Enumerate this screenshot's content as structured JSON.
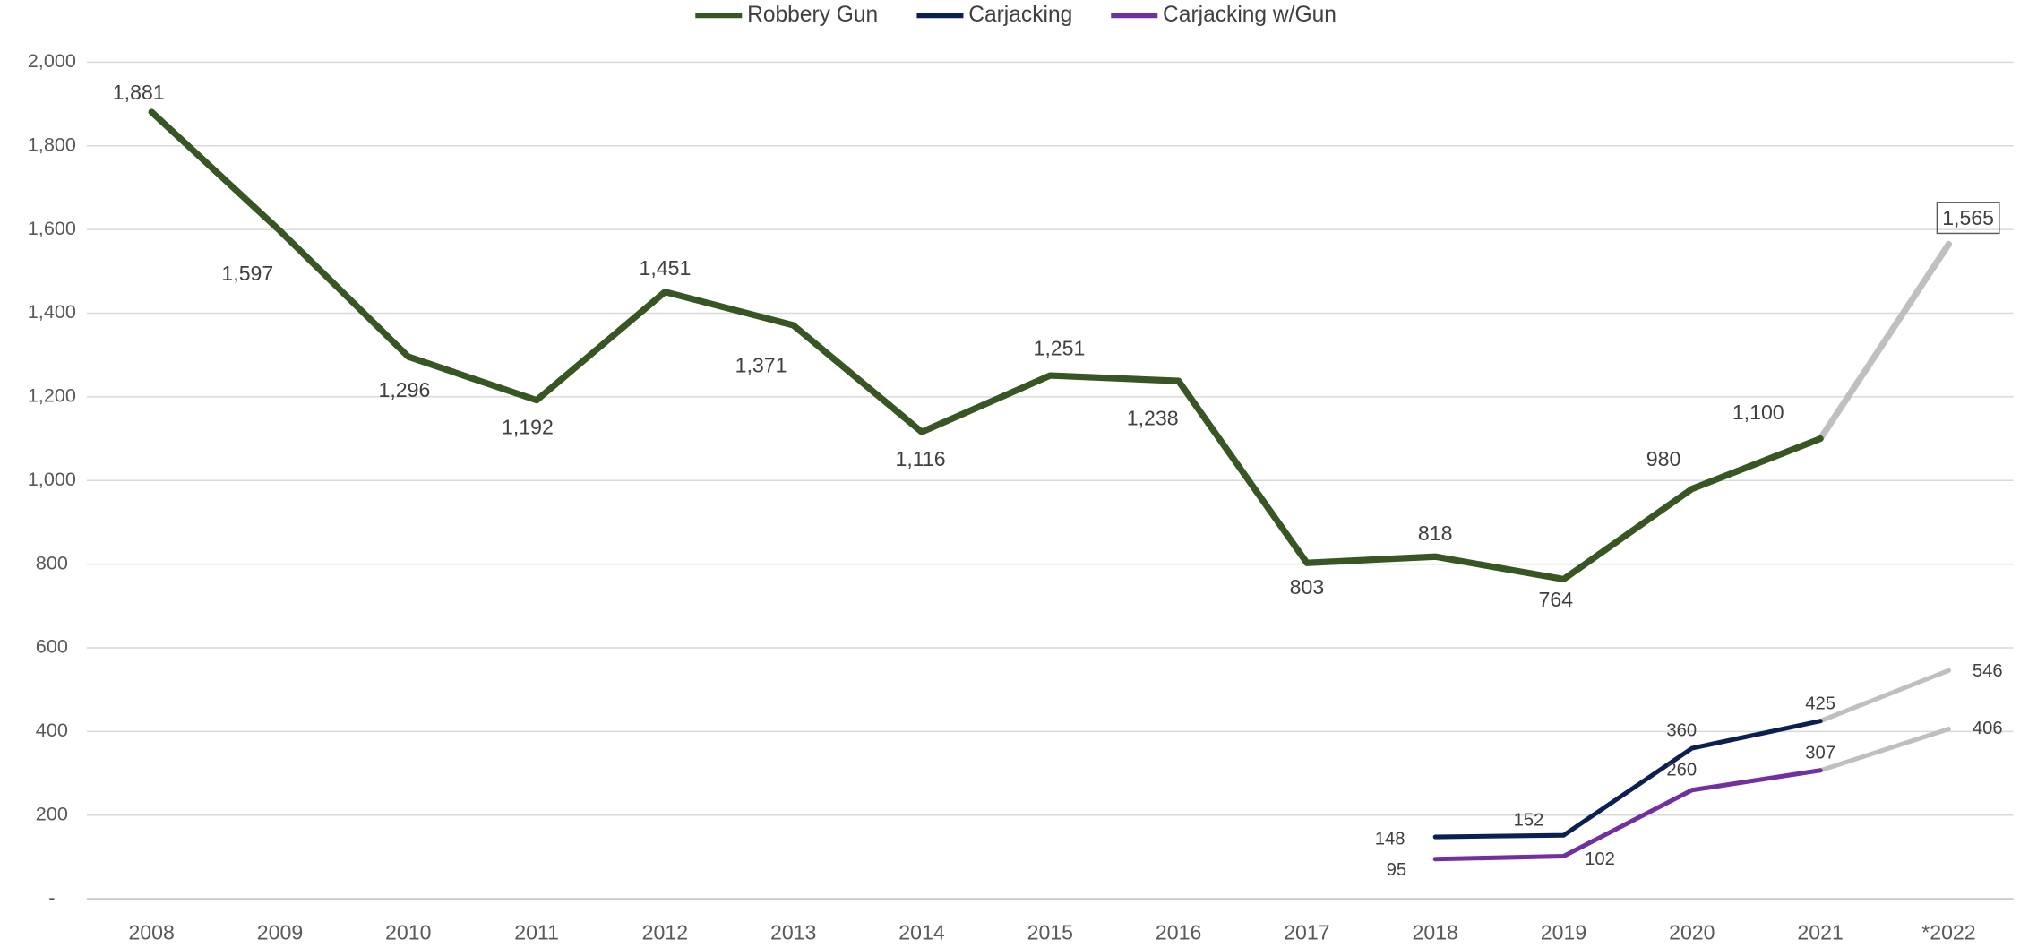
{
  "chart_data": {
    "type": "line",
    "categories": [
      "2008",
      "2009",
      "2010",
      "2011",
      "2012",
      "2013",
      "2014",
      "2015",
      "2016",
      "2017",
      "2018",
      "2019",
      "2020",
      "2021",
      "*2022"
    ],
    "projection_color": "#bfbfbf",
    "series": [
      {
        "name": "Robbery Gun",
        "color": "#375623",
        "values": [
          1881,
          1597,
          1296,
          1192,
          1451,
          1371,
          1116,
          1251,
          1238,
          803,
          818,
          764,
          980,
          1100,
          1565
        ],
        "value_labels": [
          "1,881",
          "1,597",
          "1,296",
          "1,192",
          "1,451",
          "1,371",
          "1,116",
          "1,251",
          "1,238",
          "803",
          "818",
          "764",
          "980",
          "1,100",
          "1,565"
        ]
      },
      {
        "name": "Carjacking",
        "color": "#0b1f51",
        "values": [
          null,
          null,
          null,
          null,
          null,
          null,
          null,
          null,
          null,
          null,
          148,
          152,
          360,
          425,
          546
        ]
      },
      {
        "name": "Carjacking w/Gun",
        "color": "#7030a0",
        "values": [
          null,
          null,
          null,
          null,
          null,
          null,
          null,
          null,
          null,
          null,
          95,
          102,
          260,
          307,
          406
        ]
      }
    ],
    "ylim": [
      0,
      2000
    ],
    "yticks": [
      {
        "value": 0,
        "label": "-"
      },
      200,
      400,
      600,
      800,
      {
        "value": 1000,
        "label": "1,000"
      },
      {
        "value": 1200,
        "label": "1,200"
      },
      {
        "value": 1400,
        "label": "1,400"
      },
      {
        "value": 1600,
        "label": "1,600"
      },
      {
        "value": 1800,
        "label": "1,800"
      },
      {
        "value": 2000,
        "label": "2,000"
      }
    ],
    "grid": true,
    "legend": "top"
  }
}
